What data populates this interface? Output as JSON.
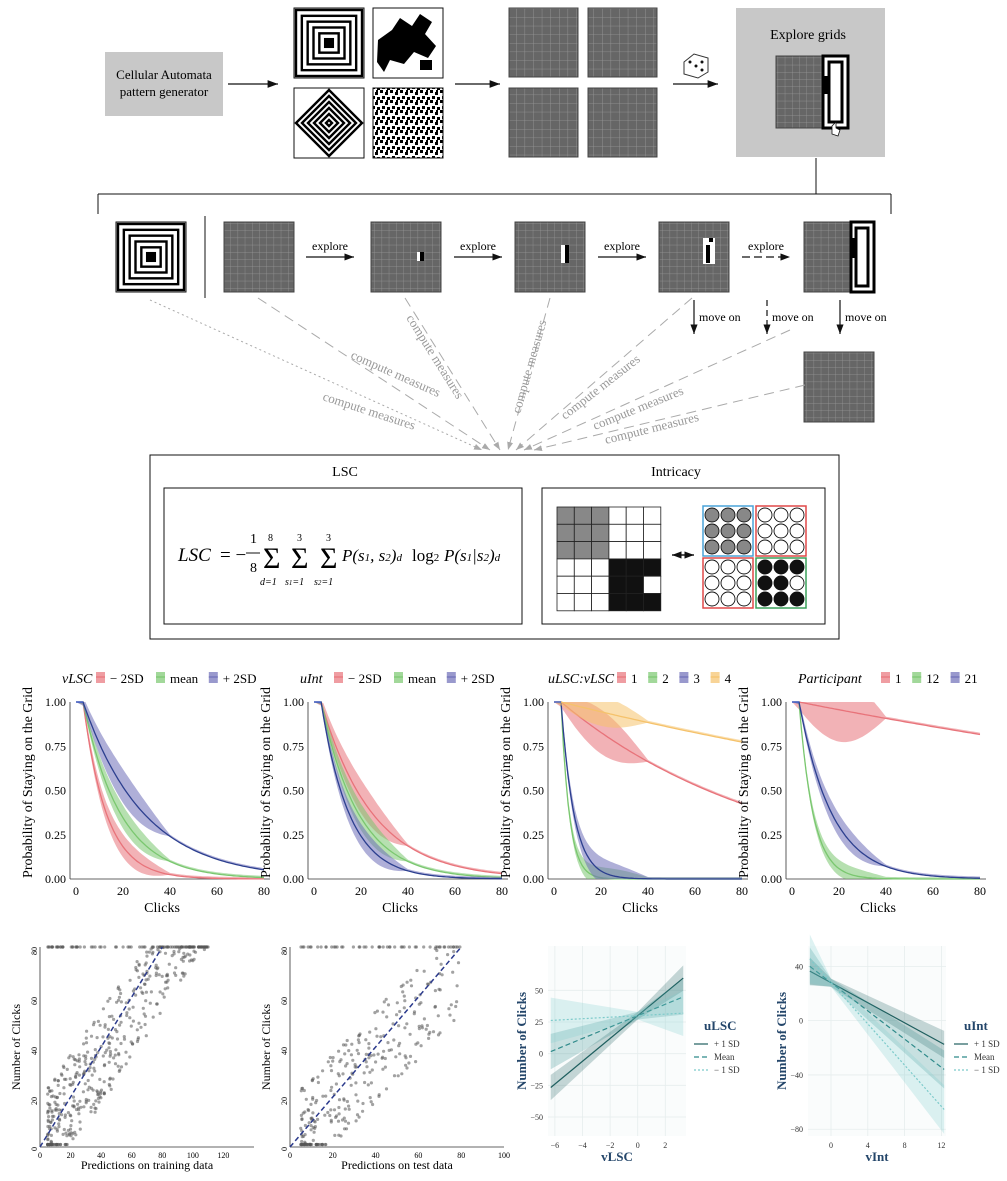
{
  "pipeline": {
    "generator_label_line1": "Cellular Automata",
    "generator_label_line2": "pattern generator",
    "explore_grids_label": "Explore grids"
  },
  "sequence": {
    "step_label": "explore",
    "move_on_label": "move on"
  },
  "measures": {
    "compute_label": "compute measures",
    "lsc_title": "LSC",
    "intricacy_title": "Intricacy",
    "lsc_formula": "LSC = −(1/8) Σ_{d=1}^{8} Σ_{s1=1}^{3} Σ_{s2=1}^{3} P(s1,s2)_d log2 P(s1|s2)_d"
  },
  "survival_panels": [
    {
      "legend_title": "vLSC",
      "legend_items": [
        "− 2SD",
        "mean",
        "+ 2SD"
      ],
      "colors": [
        "#e8737a",
        "#7ac76f",
        "#6e6eb8"
      ],
      "ylabel": "Probability of Staying on the Grid",
      "xlabel": "Clicks",
      "xticks": [
        "0",
        "20",
        "40",
        "60",
        "80"
      ],
      "yticks": [
        "0.00",
        "0.25",
        "0.50",
        "0.75",
        "1.00"
      ]
    },
    {
      "legend_title": "uInt",
      "legend_items": [
        "− 2SD",
        "mean",
        "+ 2SD"
      ],
      "colors": [
        "#e8737a",
        "#7ac76f",
        "#6e6eb8"
      ],
      "ylabel": "Probability of Staying on the Grid",
      "xlabel": "Clicks",
      "xticks": [
        "0",
        "20",
        "40",
        "60",
        "80"
      ],
      "yticks": [
        "0.00",
        "0.25",
        "0.50",
        "0.75",
        "1.00"
      ]
    },
    {
      "legend_title": "uLSC:vLSC",
      "legend_items": [
        "1",
        "2",
        "3",
        "4"
      ],
      "colors": [
        "#e8737a",
        "#7ac76f",
        "#6e6eb8",
        "#f5c26b"
      ],
      "ylabel": "Probability of Staying on the Grid",
      "xlabel": "Clicks",
      "xticks": [
        "0",
        "20",
        "40",
        "60",
        "80"
      ],
      "yticks": [
        "0.00",
        "0.25",
        "0.50",
        "0.75",
        "1.00"
      ]
    },
    {
      "legend_title": "Participant",
      "legend_items": [
        "1",
        "12",
        "21"
      ],
      "colors": [
        "#e8737a",
        "#7ac76f",
        "#6e6eb8"
      ],
      "ylabel": "Probability of Staying on the Grid",
      "xlabel": "Clicks",
      "xticks": [
        "0",
        "20",
        "40",
        "60",
        "80"
      ],
      "yticks": [
        "0.00",
        "0.25",
        "0.50",
        "0.75",
        "1.00"
      ]
    }
  ],
  "scatter_panels": [
    {
      "ylabel": "Number of Clicks",
      "xlabel": "Predictions on training data",
      "xticks": [
        "0",
        "20",
        "40",
        "60",
        "80",
        "100",
        "120"
      ],
      "yticks": [
        "0",
        "20",
        "40",
        "60",
        "80"
      ]
    },
    {
      "ylabel": "Number of Clicks",
      "xlabel": "Predictions on test data",
      "xticks": [
        "0",
        "20",
        "40",
        "60",
        "80",
        "100"
      ],
      "yticks": [
        "0",
        "20",
        "40",
        "60",
        "80"
      ]
    }
  ],
  "interaction_panels": [
    {
      "ylabel": "Number of Clicks",
      "xlabel": "vLSC",
      "legend_title": "uLSC",
      "legend_items": [
        "+ 1 SD",
        "Mean",
        "− 1 SD"
      ],
      "xticks": [
        "−6",
        "−4",
        "−2",
        "0",
        "2"
      ],
      "yticks": [
        "50",
        "25",
        "0",
        "−25",
        "−50"
      ]
    },
    {
      "ylabel": "Number of Clicks",
      "xlabel": "vInt",
      "legend_title": "uInt",
      "legend_items": [
        "+ 1 SD",
        "Mean",
        "− 1 SD"
      ],
      "xticks": [
        "0",
        "4",
        "8",
        "12"
      ],
      "yticks": [
        "40",
        "0",
        "−40",
        "−80"
      ]
    }
  ],
  "colors": {
    "grid_fill": "#666666",
    "panel_gray": "#c8c8c8",
    "teal_dark": "#1f5f5f",
    "teal_light": "#7ccaca",
    "navy_dashed": "#2b3a8c"
  }
}
